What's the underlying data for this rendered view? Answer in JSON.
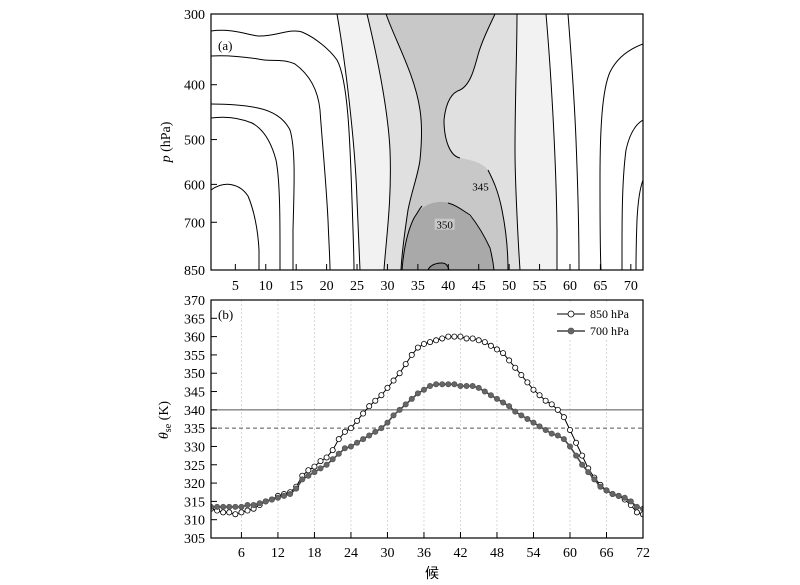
{
  "chart_data": [
    {
      "panel": "(a)",
      "type": "contour",
      "ylabel_var": "p",
      "ylabel_unit": " (hPa)",
      "y_ticks": [
        "300",
        "400",
        "500",
        "600",
        "700",
        "850"
      ],
      "x_ticks": [
        "5",
        "10",
        "15",
        "20",
        "25",
        "30",
        "35",
        "40",
        "45",
        "50",
        "55",
        "60",
        "65",
        "70"
      ],
      "xlim": [
        1,
        72
      ],
      "ylim": [
        850,
        300
      ],
      "contour_labels": [
        {
          "text": "345",
          "x": 45.3,
          "p": 605
        },
        {
          "text": "350",
          "x": 39.4,
          "p": 707
        }
      ],
      "fill_levels": {
        "330": "#f2f2f2",
        "340": "#e0e0e0",
        "345": "#c8c8c8",
        "350": "#a9a9a9",
        "355": "#8e8e8e"
      }
    },
    {
      "panel": "(b)",
      "type": "line",
      "ylabel_var": "θ",
      "ylabel_sub": "se",
      "ylabel_unit": " (K)",
      "xlabel": "候",
      "x_ticks": [
        "6",
        "12",
        "18",
        "24",
        "30",
        "36",
        "42",
        "48",
        "54",
        "60",
        "66",
        "72"
      ],
      "y_ticks": [
        "305",
        "310",
        "315",
        "320",
        "325",
        "330",
        "335",
        "340",
        "345",
        "350",
        "355",
        "360",
        "365",
        "370"
      ],
      "xlim": [
        1,
        72
      ],
      "ylim": [
        305,
        370
      ],
      "ref_lines": [
        {
          "y": 340,
          "style": "solid"
        },
        {
          "y": 335,
          "style": "dashed"
        }
      ],
      "series": [
        {
          "name": "850 hPa",
          "marker": "open",
          "values": [
            313,
            312.5,
            312,
            312,
            311.5,
            312,
            312.5,
            313,
            314,
            315,
            315.5,
            316.5,
            317,
            317.5,
            319,
            322,
            323.5,
            324.5,
            326,
            327,
            329,
            332,
            334,
            335,
            337,
            339,
            341,
            342.5,
            344,
            346,
            348,
            350,
            352.5,
            355,
            357,
            358,
            358.5,
            359,
            359.5,
            360,
            360,
            360,
            359.5,
            359.5,
            359,
            358.5,
            357.5,
            356.5,
            355.5,
            353.5,
            351.5,
            349.5,
            347.5,
            345.5,
            344,
            342.5,
            341.5,
            340,
            338,
            334.5,
            331,
            327.5,
            324,
            321.5,
            319.5,
            318,
            317,
            316.5,
            315.5,
            314,
            312,
            311.5
          ]
        },
        {
          "name": "700 hPa",
          "marker": "filled",
          "values": [
            313.5,
            313.5,
            313.5,
            313.5,
            313.5,
            313.5,
            314,
            314,
            314.5,
            315,
            315.5,
            316,
            316.5,
            317,
            318.5,
            321,
            322,
            323,
            324,
            325,
            326.5,
            328,
            329.5,
            330,
            331,
            332,
            333,
            334,
            335,
            336.5,
            338.5,
            340,
            341.5,
            343,
            344.5,
            345.5,
            346.5,
            347,
            347,
            347,
            347,
            346.5,
            346.5,
            346.5,
            346,
            345,
            344,
            343,
            342,
            341,
            339.5,
            338.5,
            337.5,
            336.5,
            335.5,
            334.5,
            333.5,
            333,
            332,
            330,
            327.5,
            325,
            323,
            321,
            319,
            318,
            317,
            316.5,
            316,
            315,
            313.5,
            313
          ]
        }
      ]
    }
  ]
}
